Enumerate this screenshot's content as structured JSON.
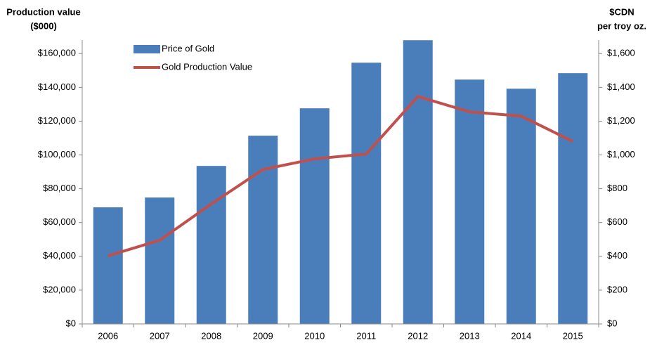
{
  "chart_data": {
    "type": "bar",
    "ylabel": [
      "Production value",
      "($000)"
    ],
    "y2label": [
      "$CDN",
      "per troy oz."
    ],
    "categories": [
      "2006",
      "2007",
      "2008",
      "2009",
      "2010",
      "2011",
      "2012",
      "2013",
      "2014",
      "2015"
    ],
    "series": [
      {
        "name": "Price of Gold",
        "type": "bar",
        "axis": "y2",
        "color": "#4a7ebb",
        "values": [
          690,
          748,
          935,
          1114,
          1276,
          1546,
          1679,
          1446,
          1392,
          1484
        ]
      },
      {
        "name": "Gold Production Value",
        "type": "line",
        "axis": "y",
        "color": "#c0504d",
        "values": [
          40300,
          49500,
          71000,
          91400,
          97700,
          100600,
          134600,
          125500,
          123000,
          108000
        ]
      }
    ],
    "ylim": [
      0,
      168000
    ],
    "yticks": [
      {
        "value": 0,
        "label": "$0"
      },
      {
        "value": 20000,
        "label": "$20,000"
      },
      {
        "value": 40000,
        "label": "$40,000"
      },
      {
        "value": 60000,
        "label": "$60,000"
      },
      {
        "value": 80000,
        "label": "$80,000"
      },
      {
        "value": 100000,
        "label": "$100,000"
      },
      {
        "value": 120000,
        "label": "$120,000"
      },
      {
        "value": 140000,
        "label": "$140,000"
      },
      {
        "value": 160000,
        "label": "$160,000"
      }
    ],
    "y2lim": [
      0,
      1680
    ],
    "y2ticks": [
      {
        "value": 0,
        "label": "$0"
      },
      {
        "value": 200,
        "label": "$200"
      },
      {
        "value": 400,
        "label": "$400"
      },
      {
        "value": 600,
        "label": "$600"
      },
      {
        "value": 800,
        "label": "$800"
      },
      {
        "value": 1000,
        "label": "$1,000"
      },
      {
        "value": 1200,
        "label": "$1,200"
      },
      {
        "value": 1400,
        "label": "$1,400"
      },
      {
        "value": 1600,
        "label": "$1,600"
      }
    ],
    "grid": false,
    "legend": "top-left"
  }
}
